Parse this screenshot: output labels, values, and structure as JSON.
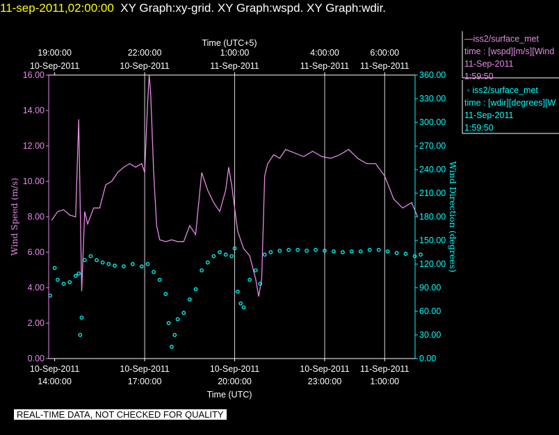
{
  "header": {
    "timestamp": "11-sep-2011,02:00:00",
    "titles": "XY Graph:xy-grid.  XY Graph:wspd.  XY Graph:wdir."
  },
  "colors": {
    "wspd": "#e68ae6",
    "wdir": "#00ffff",
    "grid": "#d8d8d8",
    "axis": "#ffffff",
    "background": "#000000"
  },
  "legend": {
    "wspd": {
      "name": "iss2/surface_met",
      "desc": "time : [wspd][m/s][Wind",
      "date": "11-Sep-2011",
      "time": "1:59:50"
    },
    "wdir": {
      "name": "iss2/surface_met",
      "desc": "time : [wdir][degrees][W",
      "date": "11-Sep-2011",
      "time": "1:59:50"
    }
  },
  "footer": {
    "quality_note": "REAL-TIME DATA, NOT CHECKED FOR QUALITY"
  },
  "chart_data": {
    "type": "line",
    "top_axis_title": "Time (UTC+5)",
    "xlabel": "Time (UTC)",
    "ylabel": "Wind  Speed  (m/s)",
    "y2label": "Wind  Direction  (degrees)",
    "x_range_hours_utc": [
      13.8,
      26.3
    ],
    "ylim": [
      0,
      16
    ],
    "y2lim": [
      0,
      360
    ],
    "grid": true,
    "legend_position": "top-right",
    "bottom_ticks": [
      {
        "hour": 14,
        "line1": "10-Sep-2011",
        "line2": "14:00:00"
      },
      {
        "hour": 17,
        "line1": "10-Sep-2011",
        "line2": "17:00:00"
      },
      {
        "hour": 20,
        "line1": "10-Sep-2011",
        "line2": "20:00:00"
      },
      {
        "hour": 23,
        "line1": "10-Sep-2011",
        "line2": "23:00:00"
      },
      {
        "hour": 25,
        "line1": "11-Sep-2011",
        "line2": "1:00:00"
      }
    ],
    "top_ticks": [
      {
        "hour": 14,
        "line1": "19:00:00",
        "line2": "10-Sep-2011"
      },
      {
        "hour": 17,
        "line1": "22:00:00",
        "line2": "10-Sep-2011"
      },
      {
        "hour": 20,
        "line1": "1:00:00",
        "line2": "11-Sep-2011"
      },
      {
        "hour": 23,
        "line1": "4:00:00",
        "line2": "11-Sep-2011"
      },
      {
        "hour": 25,
        "line1": "6:00:00",
        "line2": "11-Sep-2011"
      }
    ],
    "y_ticks": [
      "0.00",
      "2.00",
      "4.00",
      "6.00",
      "8.00",
      "10.00",
      "12.00",
      "14.00",
      "16.00"
    ],
    "y2_ticks": [
      "0.00",
      "30.00",
      "60.00",
      "90.00",
      "120.00",
      "150.00",
      "180.00",
      "210.00",
      "240.00",
      "270.00",
      "300.00",
      "330.00",
      "360.00"
    ],
    "series": [
      {
        "name": "wspd",
        "units": "m/s",
        "axis": "left",
        "x_hours_utc": [
          13.9,
          14.1,
          14.3,
          14.5,
          14.7,
          14.8,
          14.9,
          15.0,
          15.1,
          15.3,
          15.5,
          15.7,
          15.9,
          16.1,
          16.3,
          16.5,
          16.7,
          16.9,
          17.0,
          17.1,
          17.15,
          17.2,
          17.3,
          17.4,
          17.5,
          17.7,
          17.9,
          18.1,
          18.3,
          18.5,
          18.7,
          18.9,
          19.0,
          19.1,
          19.3,
          19.5,
          19.7,
          19.8,
          19.9,
          20.0,
          20.1,
          20.3,
          20.5,
          20.7,
          20.8,
          20.9,
          21.0,
          21.1,
          21.3,
          21.5,
          21.7,
          22.0,
          22.3,
          22.6,
          22.9,
          23.2,
          23.5,
          23.8,
          24.1,
          24.4,
          24.7,
          25.0,
          25.3,
          25.6,
          25.9,
          26.1
        ],
        "values": [
          7.8,
          8.3,
          8.4,
          8.1,
          8.0,
          13.5,
          3.8,
          8.3,
          7.6,
          8.5,
          8.5,
          9.8,
          10.0,
          10.5,
          10.8,
          11.0,
          10.8,
          11.0,
          10.5,
          14.5,
          16.0,
          15.0,
          10.5,
          7.5,
          6.7,
          6.6,
          6.7,
          6.6,
          6.6,
          7.5,
          7.0,
          10.5,
          10.0,
          9.5,
          8.8,
          8.3,
          9.5,
          10.8,
          9.8,
          8.5,
          7.2,
          6.2,
          5.8,
          4.5,
          3.5,
          4.5,
          10.3,
          11.0,
          11.5,
          11.3,
          11.8,
          11.6,
          11.4,
          11.7,
          11.4,
          11.3,
          11.5,
          11.8,
          11.3,
          11.0,
          11.0,
          10.3,
          9.0,
          8.5,
          8.8,
          8.0
        ]
      },
      {
        "name": "wdir",
        "units": "degrees",
        "axis": "right",
        "x_hours_utc": [
          13.85,
          14.0,
          14.1,
          14.3,
          14.5,
          14.7,
          14.8,
          14.85,
          14.9,
          15.0,
          15.2,
          15.4,
          15.6,
          15.8,
          16.0,
          16.3,
          16.6,
          16.9,
          17.1,
          17.3,
          17.5,
          17.7,
          17.8,
          17.9,
          18.0,
          18.1,
          18.3,
          18.5,
          18.7,
          18.9,
          19.1,
          19.3,
          19.5,
          19.7,
          19.9,
          20.0,
          20.1,
          20.2,
          20.3,
          20.5,
          20.7,
          20.85,
          21.0,
          21.2,
          21.5,
          21.8,
          22.1,
          22.4,
          22.7,
          23.0,
          23.3,
          23.6,
          23.9,
          24.2,
          24.5,
          24.8,
          25.1,
          25.4,
          25.7,
          26.0,
          26.2
        ],
        "values": [
          80,
          115,
          100,
          95,
          97,
          105,
          108,
          30,
          52,
          125,
          130,
          125,
          122,
          120,
          118,
          117,
          120,
          117,
          120,
          110,
          100,
          82,
          45,
          15,
          30,
          50,
          58,
          75,
          88,
          112,
          122,
          130,
          135,
          132,
          130,
          140,
          85,
          70,
          65,
          100,
          112,
          95,
          132,
          135,
          137,
          138,
          138,
          137,
          138,
          137,
          136,
          135,
          136,
          136,
          138,
          138,
          136,
          134,
          133,
          130,
          132
        ]
      }
    ]
  }
}
